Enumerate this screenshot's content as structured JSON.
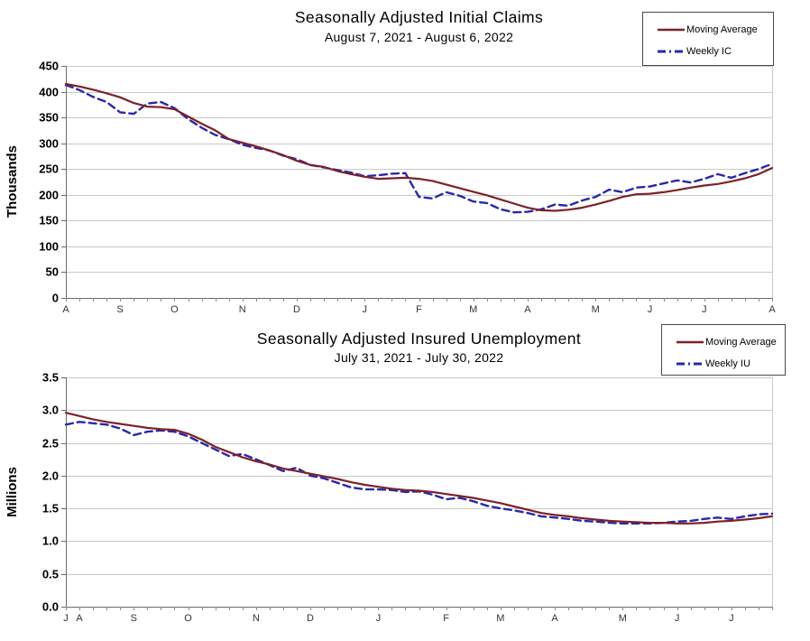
{
  "page": {
    "background": "#ffffff"
  },
  "styles": {
    "grid_color": "#c9c9c9",
    "axis_color": "#6b6b6b",
    "right_border_color": "#c9c9c9",
    "tick_color": "#8a8a8a",
    "tick_label_color": "#000000",
    "month_label_color": "#333333",
    "legend_border_color": "#4a4a4a",
    "moving_average_color": "#7d2128",
    "weekly_color": "#2828a8"
  },
  "chart_data": [
    {
      "id": "initial-claims",
      "type": "line",
      "title": "Seasonally Adjusted Initial Claims",
      "subtitle": "August 7, 2021 - August 6, 2022",
      "ylabel": "Thousands",
      "ylim": [
        0,
        450
      ],
      "yticks": [
        "0",
        "50",
        "100",
        "150",
        "200",
        "250",
        "300",
        "350",
        "400",
        "450"
      ],
      "x_unit": "week",
      "n_weeks": 53,
      "grid": "horizontal",
      "legend_position": "top-right",
      "month_ticks": [
        {
          "label": "A",
          "week": 1
        },
        {
          "label": "S",
          "week": 5
        },
        {
          "label": "O",
          "week": 9
        },
        {
          "label": "N",
          "week": 14
        },
        {
          "label": "D",
          "week": 18
        },
        {
          "label": "J",
          "week": 23
        },
        {
          "label": "F",
          "week": 27
        },
        {
          "label": "M",
          "week": 31
        },
        {
          "label": "A",
          "week": 35
        },
        {
          "label": "M",
          "week": 40
        },
        {
          "label": "J",
          "week": 44
        },
        {
          "label": "J",
          "week": 48
        },
        {
          "label": "A",
          "week": 53
        }
      ],
      "series": [
        {
          "name": "Moving Average",
          "color": "#7d2128",
          "line_style": "solid",
          "values": [
            415,
            410,
            404,
            397,
            389,
            378,
            371,
            370,
            366,
            352,
            338,
            325,
            308,
            301,
            294,
            286,
            277,
            266,
            258,
            254,
            246,
            240,
            235,
            231,
            232,
            233,
            231,
            227,
            220,
            213,
            206,
            199,
            191,
            183,
            175,
            170,
            169,
            171,
            175,
            181,
            188,
            196,
            201,
            202,
            205,
            209,
            214,
            218,
            221,
            226,
            232,
            240,
            252
          ]
        },
        {
          "name": "Weekly IC",
          "color": "#2828a8",
          "line_style": "dashed",
          "values": [
            413,
            403,
            390,
            380,
            360,
            357,
            377,
            380,
            368,
            347,
            330,
            316,
            308,
            297,
            291,
            286,
            276,
            269,
            258,
            253,
            248,
            243,
            236,
            238,
            241,
            242,
            196,
            193,
            205,
            198,
            187,
            184,
            172,
            166,
            167,
            172,
            181,
            179,
            189,
            196,
            210,
            205,
            214,
            216,
            222,
            228,
            224,
            231,
            240,
            233,
            242,
            250,
            260
          ]
        }
      ]
    },
    {
      "id": "insured-unemployment",
      "type": "line",
      "title": "Seasonally Adjusted Insured Unemployment",
      "subtitle": "July 31, 2021 - July 30, 2022",
      "ylabel": "Millions",
      "ylim": [
        0,
        3.5
      ],
      "yticks": [
        "0.0",
        "0.5",
        "1.0",
        "1.5",
        "2.0",
        "2.5",
        "3.0",
        "3.5"
      ],
      "x_unit": "week",
      "n_weeks": 53,
      "grid": "horizontal",
      "legend_position": "top-right",
      "month_ticks": [
        {
          "label": "J",
          "week": 1
        },
        {
          "label": "A",
          "week": 2
        },
        {
          "label": "S",
          "week": 6
        },
        {
          "label": "O",
          "week": 10
        },
        {
          "label": "N",
          "week": 15
        },
        {
          "label": "D",
          "week": 19
        },
        {
          "label": "J",
          "week": 24
        },
        {
          "label": "F",
          "week": 29
        },
        {
          "label": "M",
          "week": 33
        },
        {
          "label": "A",
          "week": 37
        },
        {
          "label": "M",
          "week": 42
        },
        {
          "label": "J",
          "week": 46
        },
        {
          "label": "J",
          "week": 50
        }
      ],
      "series": [
        {
          "name": "Moving Average",
          "color": "#7d2128",
          "line_style": "solid",
          "values": [
            2.96,
            2.91,
            2.86,
            2.82,
            2.79,
            2.76,
            2.73,
            2.71,
            2.7,
            2.64,
            2.55,
            2.44,
            2.36,
            2.28,
            2.22,
            2.17,
            2.11,
            2.07,
            2.03,
            1.99,
            1.95,
            1.9,
            1.86,
            1.83,
            1.8,
            1.78,
            1.77,
            1.75,
            1.72,
            1.69,
            1.66,
            1.62,
            1.58,
            1.53,
            1.48,
            1.43,
            1.4,
            1.38,
            1.35,
            1.33,
            1.31,
            1.3,
            1.29,
            1.28,
            1.28,
            1.27,
            1.27,
            1.28,
            1.3,
            1.31,
            1.33,
            1.35,
            1.38
          ]
        },
        {
          "name": "Weekly IU",
          "color": "#2828a8",
          "line_style": "dashed",
          "values": [
            2.78,
            2.82,
            2.8,
            2.78,
            2.72,
            2.62,
            2.67,
            2.69,
            2.67,
            2.6,
            2.5,
            2.4,
            2.3,
            2.33,
            2.25,
            2.16,
            2.07,
            2.12,
            2.0,
            1.96,
            1.89,
            1.82,
            1.79,
            1.79,
            1.78,
            1.75,
            1.76,
            1.71,
            1.64,
            1.66,
            1.61,
            1.54,
            1.5,
            1.47,
            1.43,
            1.38,
            1.36,
            1.34,
            1.31,
            1.3,
            1.28,
            1.27,
            1.27,
            1.27,
            1.28,
            1.3,
            1.31,
            1.34,
            1.36,
            1.34,
            1.38,
            1.41,
            1.42
          ]
        }
      ]
    }
  ]
}
